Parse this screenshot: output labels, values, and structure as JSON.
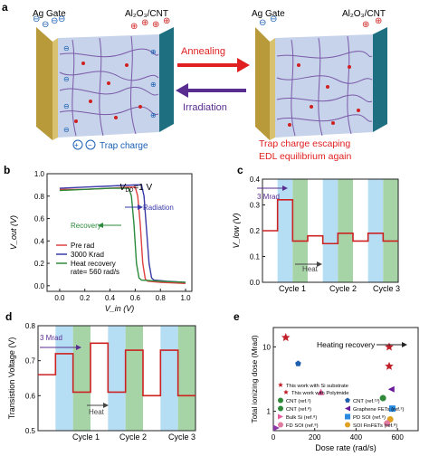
{
  "panel_a": {
    "letter": "a",
    "left_gate": "Ag Gate",
    "left_channel": "Al₂O₃/CNT",
    "right_gate": "Ag Gate",
    "right_channel": "Al₂O₃/CNT",
    "arrow_top": "Annealing",
    "arrow_bottom": "Irradiation",
    "trap_legend": "Trap charge",
    "caption_line1": "Trap charge escaping",
    "caption_line2": "EDL equilibrium again",
    "colors": {
      "anneal": "#e02020",
      "irradiation": "#5a2d91",
      "caption": "#e02020",
      "legend": "#1a5fb4"
    }
  },
  "panel_b": {
    "letter": "b",
    "vdd_label": "V",
    "vdd_sub": "DD",
    "vdd_value": "=1 V",
    "recovery_label": "Recovery",
    "radiation_label": "Radiation",
    "legend": [
      "Pre rad",
      "3000 Krad",
      "Heat recovery",
      "rate= 560 rad/s"
    ]
  },
  "panel_c": {
    "letter": "c",
    "dose_label": "3 Mrad",
    "heat_label": "Heat",
    "cycles": [
      "Cycle 1",
      "Cycle 2",
      "Cycle 3"
    ]
  },
  "panel_d": {
    "letter": "d",
    "dose_label": "3 Mrad",
    "heat_label": "Heat",
    "cycles": [
      "Cycle 1",
      "Cycle 2",
      "Cycle 3"
    ]
  },
  "panel_e": {
    "letter": "e",
    "annotation": "Heating recovery",
    "legend": [
      "This work with Si substrate",
      "This work with Polyimide",
      "CNT (ref.²)",
      "CNT (ref.¹³)",
      "CNT (ref.⁸)",
      "Graphene FETs (ref.²)",
      "Bulk Si (ref.⁸)",
      "PD SOI (ref.⁸)",
      "FD SOI (ref.⁸)",
      "SOI FinFETs (ref.⁸)"
    ]
  },
  "chart_data": [
    {
      "type": "line",
      "panel": "b",
      "xlabel": "V_in (V)",
      "ylabel": "V_out (V)",
      "xlim": [
        -0.1,
        1.05
      ],
      "ylim": [
        -0.05,
        1.0
      ],
      "xticks": [
        "0.0",
        "0.2",
        "0.4",
        "0.6",
        "0.8",
        "1.0"
      ],
      "yticks": [
        "0.0",
        "0.2",
        "0.4",
        "0.6",
        "0.8",
        "1.0"
      ],
      "legend_position": "bottom-left",
      "series": [
        {
          "name": "Pre rad",
          "color": "#e04040",
          "x": [
            0,
            0.2,
            0.4,
            0.55,
            0.6,
            0.62,
            0.64,
            0.66,
            0.68,
            0.7,
            0.8,
            1.0
          ],
          "y": [
            0.86,
            0.86,
            0.87,
            0.88,
            0.88,
            0.8,
            0.55,
            0.2,
            0.06,
            0.04,
            0.03,
            0.02
          ]
        },
        {
          "name": "3000 Krad",
          "color": "#3a3aa8",
          "x": [
            0,
            0.2,
            0.4,
            0.6,
            0.65,
            0.67,
            0.69,
            0.71,
            0.73,
            0.75,
            0.85,
            1.0
          ],
          "y": [
            0.87,
            0.88,
            0.89,
            0.9,
            0.9,
            0.8,
            0.5,
            0.2,
            0.07,
            0.05,
            0.04,
            0.03
          ]
        },
        {
          "name": "Heat recovery",
          "color": "#2a8a3a",
          "x": [
            0,
            0.2,
            0.4,
            0.5,
            0.55,
            0.57,
            0.59,
            0.61,
            0.63,
            0.65,
            0.8,
            1.0
          ],
          "y": [
            0.85,
            0.86,
            0.87,
            0.87,
            0.87,
            0.8,
            0.55,
            0.2,
            0.07,
            0.05,
            0.04,
            0.03
          ]
        }
      ]
    },
    {
      "type": "line",
      "panel": "c",
      "xlabel": "",
      "ylabel": "V_low (V)",
      "xlim": [
        0,
        9
      ],
      "ylim": [
        0,
        0.4
      ],
      "yticks": [
        "0.0",
        "0.1",
        "0.2",
        "0.3",
        "0.4"
      ],
      "series": [
        {
          "name": "",
          "color": "#cc2222",
          "x": [
            0,
            1,
            1,
            2,
            2,
            3,
            3,
            4,
            4,
            5,
            5,
            6,
            6,
            7,
            7,
            8,
            8,
            9
          ],
          "y": [
            0.2,
            0.2,
            0.32,
            0.32,
            0.16,
            0.16,
            0.18,
            0.18,
            0.15,
            0.15,
            0.19,
            0.19,
            0.16,
            0.16,
            0.19,
            0.19,
            0.16,
            0.16
          ]
        }
      ]
    },
    {
      "type": "line",
      "panel": "d",
      "xlabel": "",
      "ylabel": "Transistion Voltage (V)",
      "xlim": [
        0,
        9
      ],
      "ylim": [
        0.5,
        0.8
      ],
      "yticks": [
        "0.5",
        "0.6",
        "0.7",
        "0.8"
      ],
      "series": [
        {
          "name": "",
          "color": "#cc2222",
          "x": [
            0,
            1,
            1,
            2,
            2,
            3,
            3,
            4,
            4,
            5,
            5,
            6,
            6,
            7,
            7,
            8,
            8,
            9
          ],
          "y": [
            0.66,
            0.66,
            0.72,
            0.72,
            0.61,
            0.61,
            0.75,
            0.75,
            0.61,
            0.61,
            0.73,
            0.73,
            0.6,
            0.6,
            0.73,
            0.73,
            0.6,
            0.6
          ]
        }
      ]
    },
    {
      "type": "scatter",
      "panel": "e",
      "xlabel": "Dose rate (rad/s)",
      "ylabel": "Total ionizing dose (Mrad)",
      "xlim": [
        0,
        700
      ],
      "ylim": [
        0.5,
        20
      ],
      "yscale": "log",
      "xticks": [
        "0",
        "200",
        "400",
        "600"
      ],
      "yticks": [
        "1",
        "10"
      ],
      "points": [
        {
          "x": 560,
          "y": 10,
          "color": "#c0202a",
          "shape": "star"
        },
        {
          "x": 560,
          "y": 5,
          "color": "#c0202a",
          "shape": "star"
        },
        {
          "x": 60,
          "y": 14,
          "color": "#c0202a",
          "shape": "star"
        },
        {
          "x": 120,
          "y": 5.5,
          "color": "#1f5fb0",
          "shape": "pentagon"
        },
        {
          "x": 230,
          "y": 2,
          "color": "#e85aa0",
          "shape": "triangle-up"
        },
        {
          "x": 15,
          "y": 0.55,
          "color": "#8a3aa8",
          "shape": "triangle-right"
        },
        {
          "x": 530,
          "y": 1.6,
          "color": "#2f8a3a",
          "shape": "circle"
        },
        {
          "x": 570,
          "y": 2.2,
          "color": "#6a1a9a",
          "shape": "triangle-left"
        },
        {
          "x": 575,
          "y": 1.1,
          "color": "#2a8ae0",
          "shape": "square"
        },
        {
          "x": 565,
          "y": 0.75,
          "color": "#e0a020",
          "shape": "circle"
        },
        {
          "x": 550,
          "y": 0.65,
          "color": "#e07aa0",
          "shape": "circle"
        }
      ]
    }
  ]
}
